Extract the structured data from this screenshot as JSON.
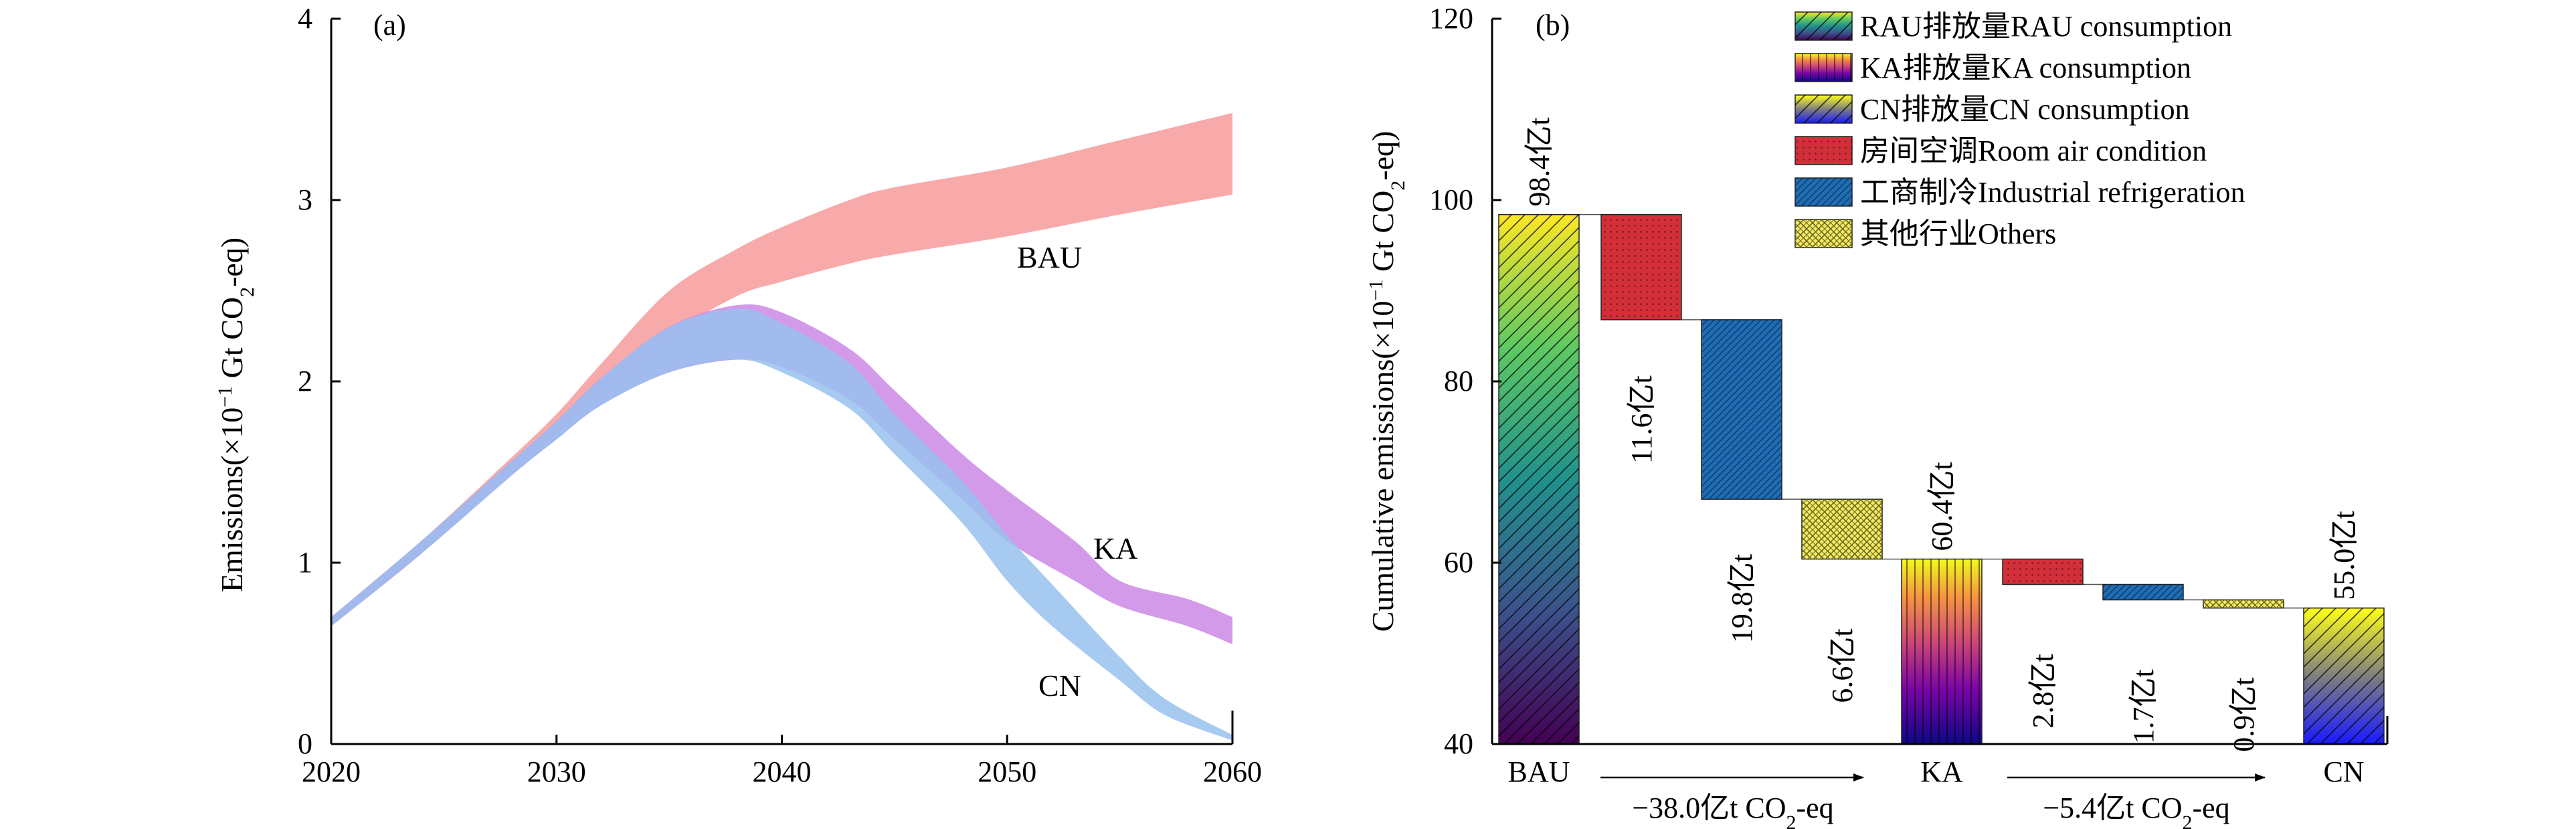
{
  "chart_data": [
    {
      "type": "area",
      "panel_label": "(a)",
      "ylabel_main": "Emissions(×10",
      "ylabel_exp": "−1",
      "ylabel_rest": " Gt CO",
      "ylabel_sub": "2",
      "ylabel_end": "-eq)",
      "xlim": [
        2020,
        2060
      ],
      "ylim": [
        0,
        4
      ],
      "xticks": [
        2020,
        2030,
        2040,
        2050,
        2060
      ],
      "yticks": [
        0,
        1,
        2,
        3,
        4
      ],
      "grid": false,
      "legend": "none",
      "series": [
        {
          "name": "BAU",
          "color": "#f79a9b",
          "x": [
            2020,
            2024,
            2028,
            2030,
            2032,
            2035,
            2038,
            2040,
            2043,
            2045,
            2050,
            2055,
            2060
          ],
          "lower": [
            0.65,
            1.05,
            1.5,
            1.72,
            1.95,
            2.25,
            2.47,
            2.55,
            2.65,
            2.7,
            2.8,
            2.92,
            3.03
          ],
          "upper": [
            0.7,
            1.12,
            1.58,
            1.82,
            2.1,
            2.5,
            2.73,
            2.85,
            3.0,
            3.07,
            3.18,
            3.33,
            3.48
          ]
        },
        {
          "name": "KA",
          "color": "#cc88e6",
          "x": [
            2020,
            2024,
            2028,
            2030,
            2032,
            2035,
            2038,
            2040,
            2043,
            2045,
            2048,
            2050,
            2053,
            2055,
            2058,
            2060
          ],
          "lower": [
            0.65,
            1.05,
            1.48,
            1.68,
            1.87,
            2.05,
            2.12,
            2.08,
            1.9,
            1.68,
            1.35,
            1.12,
            0.9,
            0.76,
            0.65,
            0.55
          ],
          "upper": [
            0.7,
            1.12,
            1.56,
            1.78,
            2.02,
            2.3,
            2.42,
            2.38,
            2.18,
            1.95,
            1.6,
            1.4,
            1.12,
            0.9,
            0.8,
            0.7
          ]
        },
        {
          "name": "CN",
          "color": "#98c1ef",
          "x": [
            2020,
            2024,
            2028,
            2030,
            2032,
            2035,
            2038,
            2040,
            2043,
            2045,
            2048,
            2050,
            2052,
            2055,
            2057,
            2060
          ],
          "lower": [
            0.65,
            1.05,
            1.48,
            1.68,
            1.87,
            2.05,
            2.12,
            2.05,
            1.85,
            1.6,
            1.22,
            0.9,
            0.65,
            0.35,
            0.16,
            0.02
          ],
          "upper": [
            0.7,
            1.12,
            1.56,
            1.78,
            2.02,
            2.3,
            2.4,
            2.32,
            2.1,
            1.82,
            1.45,
            1.15,
            0.88,
            0.48,
            0.25,
            0.05
          ]
        }
      ]
    },
    {
      "type": "bar",
      "subtype": "waterfall",
      "panel_label": "(b)",
      "ylabel_main": "Cumulative emissions(×10",
      "ylabel_exp": "−1",
      "ylabel_rest": " Gt CO",
      "ylabel_sub": "2",
      "ylabel_end": "-eq)",
      "ylim": [
        40,
        120
      ],
      "yticks": [
        40,
        60,
        80,
        100,
        120
      ],
      "grid": false,
      "legend": "top-right",
      "categories": [
        "BAU",
        "KA",
        "CN"
      ],
      "bars": [
        {
          "kind": "total",
          "category": "BAU",
          "value": 98.4,
          "label": "98.4亿t",
          "style": "rau"
        },
        {
          "kind": "step",
          "from": 98.4,
          "to": 86.8,
          "label": "11.6亿t",
          "style": "room"
        },
        {
          "kind": "step",
          "from": 86.8,
          "to": 67.0,
          "label": "19.8亿t",
          "style": "industrial"
        },
        {
          "kind": "step",
          "from": 67.0,
          "to": 60.4,
          "label": "6.6亿t",
          "style": "others"
        },
        {
          "kind": "total",
          "category": "KA",
          "value": 60.4,
          "label": "60.4亿t",
          "style": "ka"
        },
        {
          "kind": "step",
          "from": 60.4,
          "to": 57.6,
          "label": "2.8亿t",
          "style": "room"
        },
        {
          "kind": "step",
          "from": 57.6,
          "to": 55.9,
          "label": "1.7亿t",
          "style": "industrial"
        },
        {
          "kind": "step",
          "from": 55.9,
          "to": 55.0,
          "label": "0.9亿t",
          "style": "others"
        },
        {
          "kind": "total",
          "category": "CN",
          "value": 55.0,
          "label": "55.0亿t",
          "style": "cn"
        }
      ],
      "reductions": [
        {
          "main": "−38.0亿t CO",
          "sub": "2",
          "end": "-eq"
        },
        {
          "main": "−5.4亿t CO",
          "sub": "2",
          "end": "-eq"
        }
      ],
      "legend_entries": [
        {
          "style": "rau",
          "label": "RAU排放量RAU consumption"
        },
        {
          "style": "ka",
          "label": "KA排放量KA consumption"
        },
        {
          "style": "cn",
          "label": "CN排放量CN consumption"
        },
        {
          "style": "room",
          "label": "房间空调Room air condition"
        },
        {
          "style": "industrial",
          "label": "工商制冷Industrial refrigeration"
        },
        {
          "style": "others",
          "label": "其他行业Others"
        }
      ],
      "colors": {
        "room": "#d32f3a",
        "industrial": "#1f6db3",
        "others": "#f0e868"
      }
    }
  ]
}
